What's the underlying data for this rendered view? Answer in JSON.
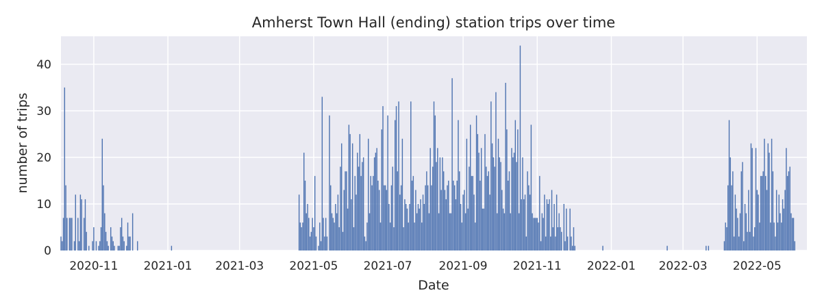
{
  "chart_data": {
    "type": "bar",
    "title": "Amherst Town Hall (ending) station trips over time",
    "xlabel": "Date",
    "ylabel": "number of trips",
    "x_range": [
      "2020-10-05",
      "2022-06-11"
    ],
    "ylim": [
      0,
      46
    ],
    "y_ticks": [
      0,
      10,
      20,
      30,
      40
    ],
    "x_ticks": [
      {
        "date": "2020-11-01",
        "label": "2020-11"
      },
      {
        "date": "2021-01-01",
        "label": "2021-01"
      },
      {
        "date": "2021-03-01",
        "label": "2021-03"
      },
      {
        "date": "2021-05-01",
        "label": "2021-05"
      },
      {
        "date": "2021-07-01",
        "label": "2021-07"
      },
      {
        "date": "2021-09-01",
        "label": "2021-09"
      },
      {
        "date": "2021-11-01",
        "label": "2021-11"
      },
      {
        "date": "2022-01-01",
        "label": "2022-01"
      },
      {
        "date": "2022-03-01",
        "label": "2022-03"
      },
      {
        "date": "2022-05-01",
        "label": "2022-05"
      }
    ],
    "grid": true,
    "bar_color": "#4c72b0",
    "background_color": "#eaeaf2",
    "series": [
      {
        "segments": [
          {
            "start": "2020-10-05",
            "values": [
              3,
              2,
              7,
              35,
              14,
              7,
              0,
              7,
              7,
              7,
              0,
              2,
              12,
              0,
              7,
              2,
              12,
              11,
              0,
              7,
              11,
              4,
              0,
              1,
              0,
              0,
              2,
              5,
              0,
              2,
              0,
              1,
              2,
              5,
              24,
              14,
              8,
              4,
              2,
              1,
              0,
              5,
              3,
              2,
              1,
              0,
              0,
              1,
              1,
              5,
              7,
              3,
              2,
              0,
              1,
              6,
              3,
              3,
              0,
              8,
              0,
              0,
              0,
              2
            ]
          },
          {
            "start": "2021-01-04",
            "values": [
              1
            ]
          },
          {
            "start": "2021-04-19",
            "values": [
              12,
              6,
              5,
              6,
              21,
              15,
              8,
              10,
              7,
              3,
              4,
              7,
              5,
              16,
              3,
              0,
              1,
              6,
              2,
              33,
              7,
              3,
              7,
              3,
              0,
              29,
              14,
              8,
              7,
              6,
              10,
              8,
              12,
              5,
              18,
              23,
              4,
              13,
              17,
              17,
              9,
              27,
              25,
              11,
              23,
              5,
              16,
              12,
              21,
              18,
              25,
              16,
              19,
              20,
              3,
              2,
              6,
              24,
              8,
              16,
              14,
              16,
              20,
              21,
              22,
              15,
              13,
              6,
              26,
              31,
              14,
              14,
              13,
              29,
              10,
              6,
              14,
              18,
              5,
              28,
              31,
              17,
              32,
              12,
              14,
              24,
              5,
              11,
              10,
              9,
              6,
              10,
              32,
              15,
              16,
              6,
              13,
              8,
              10,
              9,
              11,
              6,
              12,
              10,
              14,
              17,
              14,
              8,
              22,
              14,
              18,
              32,
              29,
              19,
              22,
              8,
              20,
              13,
              20,
              17,
              13,
              11,
              14,
              15,
              8,
              8,
              37,
              15,
              14,
              11,
              15,
              28,
              17,
              10,
              6,
              12,
              13,
              8,
              24,
              9,
              18,
              27,
              16,
              16,
              12,
              6,
              29,
              25,
              21,
              15,
              22,
              9,
              9,
              25,
              18,
              16,
              17,
              12,
              32,
              23,
              20,
              18,
              34,
              8,
              24,
              20,
              19,
              13,
              9,
              8,
              36,
              26,
              15,
              17,
              8,
              22,
              20,
              21,
              28,
              19,
              26,
              8,
              44,
              11,
              20,
              11,
              12,
              3,
              17,
              14,
              12,
              27,
              8,
              7,
              7,
              7,
              7,
              6,
              16,
              2,
              8,
              7,
              12,
              3,
              11,
              10,
              11,
              3,
              13,
              5,
              10,
              3,
              12,
              5,
              8,
              5,
              4,
              0,
              10,
              2,
              9,
              3,
              0,
              9,
              3,
              1,
              5,
              1
            ]
          },
          {
            "start": "2021-12-25",
            "values": [
              1
            ]
          },
          {
            "start": "2022-02-16",
            "values": [
              1
            ]
          },
          {
            "start": "2022-03-20",
            "values": [
              1,
              0,
              1
            ]
          },
          {
            "start": "2022-04-04",
            "values": [
              2,
              6,
              5,
              14,
              28,
              20,
              14,
              17,
              3,
              12,
              9,
              7,
              3,
              8,
              17,
              19,
              2,
              10,
              8,
              4,
              13,
              4,
              23,
              22,
              3,
              5,
              22,
              13,
              12,
              6,
              16,
              16,
              17,
              24,
              16,
              13,
              23,
              21,
              6,
              24,
              17,
              6,
              3,
              13,
              6,
              12,
              8,
              6,
              11,
              9,
              13,
              22,
              16,
              17,
              18,
              8,
              7,
              7,
              2
            ]
          }
        ]
      }
    ]
  }
}
